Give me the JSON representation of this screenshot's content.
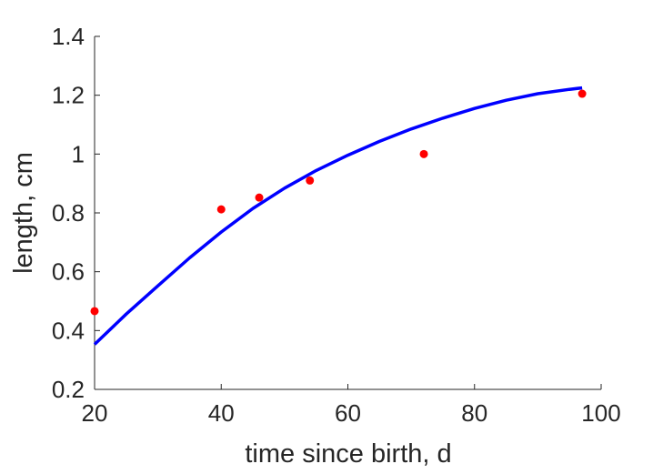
{
  "chart_data": {
    "type": "scatter",
    "title": "",
    "xlabel": "time since birth, d",
    "ylabel": "length, cm",
    "xlim": [
      20,
      100
    ],
    "ylim": [
      0.2,
      1.4
    ],
    "xticks": [
      20,
      40,
      60,
      80,
      100
    ],
    "yticks": [
      0.2,
      0.4,
      0.6,
      0.8,
      1.0,
      1.2,
      1.4
    ],
    "xtick_labels": [
      "20",
      "40",
      "60",
      "80",
      "100"
    ],
    "ytick_labels": [
      "0.2",
      "0.4",
      "0.6",
      "0.8",
      "1",
      "1.2",
      "1.4"
    ],
    "grid": false,
    "series": [
      {
        "kind": "points",
        "color": "#ff0000",
        "x": [
          20,
          40,
          46,
          54,
          72,
          97
        ],
        "y": [
          0.466,
          0.812,
          0.852,
          0.91,
          1.0,
          1.205
        ]
      },
      {
        "kind": "line",
        "color": "#0000ff",
        "x": [
          20,
          25,
          30,
          35,
          40,
          45,
          50,
          55,
          60,
          65,
          70,
          75,
          80,
          85,
          90,
          95,
          97
        ],
        "y": [
          0.353,
          0.456,
          0.552,
          0.647,
          0.735,
          0.815,
          0.884,
          0.944,
          0.996,
          1.043,
          1.085,
          1.122,
          1.155,
          1.183,
          1.205,
          1.22,
          1.225
        ]
      }
    ]
  }
}
